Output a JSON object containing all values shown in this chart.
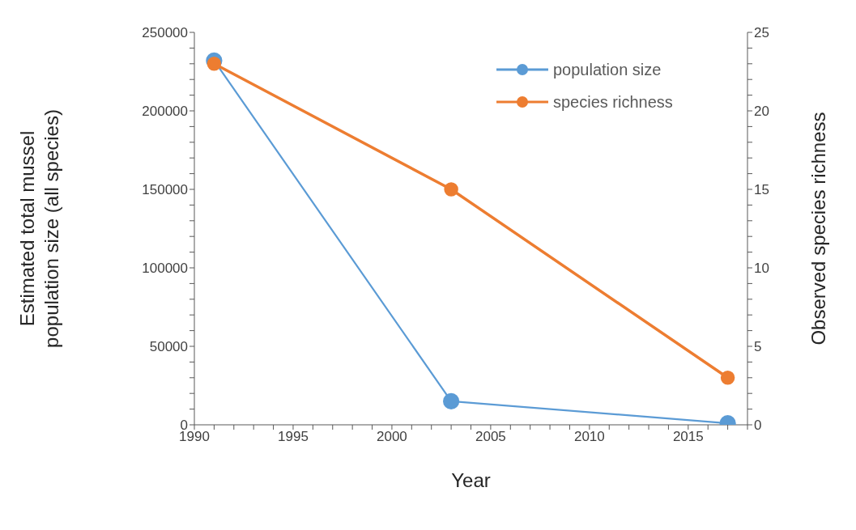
{
  "chart_data": {
    "type": "line",
    "xlabel": "Year",
    "ylabel": "Estimated total mussel population size (all species)",
    "y2label": "Observed species richness",
    "x": [
      1991,
      2003,
      2017
    ],
    "series": [
      {
        "name": "population size",
        "color": "#5b9bd5",
        "values": [
          232000,
          15000,
          1000
        ]
      },
      {
        "name": "species richness",
        "color": "#ed7d31",
        "values": [
          23,
          15,
          3
        ],
        "axis": "y2"
      }
    ],
    "xlim": [
      1990,
      2018
    ],
    "xticks": [
      1990,
      {
        "value": 1991,
        "label": null
      },
      {
        "value": 1992,
        "label": null
      },
      {
        "value": 1993,
        "label": null
      },
      {
        "value": 1994,
        "label": null
      },
      1995,
      {
        "value": 1996,
        "label": null
      },
      {
        "value": 1997,
        "label": null
      },
      {
        "value": 1998,
        "label": null
      },
      {
        "value": 1999,
        "label": null
      },
      2000,
      {
        "value": 2001,
        "label": null
      },
      {
        "value": 2002,
        "label": null
      },
      {
        "value": 2003,
        "label": null
      },
      {
        "value": 2004,
        "label": null
      },
      2005,
      {
        "value": 2006,
        "label": null
      },
      {
        "value": 2007,
        "label": null
      },
      {
        "value": 2008,
        "label": null
      },
      {
        "value": 2009,
        "label": null
      },
      2010,
      {
        "value": 2011,
        "label": null
      },
      {
        "value": 2012,
        "label": null
      },
      {
        "value": 2013,
        "label": null
      },
      {
        "value": 2014,
        "label": null
      },
      2015,
      {
        "value": 2016,
        "label": null
      },
      {
        "value": 2017,
        "label": null
      },
      {
        "value": 2018,
        "label": null
      }
    ],
    "ylim": [
      0,
      250000
    ],
    "yticks": [
      0,
      {
        "value": 10000,
        "label": null
      },
      {
        "value": 20000,
        "label": null
      },
      {
        "value": 30000,
        "label": null
      },
      {
        "value": 40000,
        "label": null
      },
      50000,
      {
        "value": 60000,
        "label": null
      },
      {
        "value": 70000,
        "label": null
      },
      {
        "value": 80000,
        "label": null
      },
      {
        "value": 90000,
        "label": null
      },
      100000,
      {
        "value": 110000,
        "label": null
      },
      {
        "value": 120000,
        "label": null
      },
      {
        "value": 130000,
        "label": null
      },
      {
        "value": 140000,
        "label": null
      },
      150000,
      {
        "value": 160000,
        "label": null
      },
      {
        "value": 170000,
        "label": null
      },
      {
        "value": 180000,
        "label": null
      },
      {
        "value": 190000,
        "label": null
      },
      200000,
      {
        "value": 210000,
        "label": null
      },
      {
        "value": 220000,
        "label": null
      },
      {
        "value": 230000,
        "label": null
      },
      {
        "value": 240000,
        "label": null
      },
      250000
    ],
    "y2lim": [
      0,
      25
    ],
    "y2ticks": [
      0,
      {
        "value": 1,
        "label": null
      },
      {
        "value": 2,
        "label": null
      },
      {
        "value": 3,
        "label": null
      },
      {
        "value": 4,
        "label": null
      },
      5,
      {
        "value": 6,
        "label": null
      },
      {
        "value": 7,
        "label": null
      },
      {
        "value": 8,
        "label": null
      },
      {
        "value": 9,
        "label": null
      },
      10,
      {
        "value": 11,
        "label": null
      },
      {
        "value": 12,
        "label": null
      },
      {
        "value": 13,
        "label": null
      },
      {
        "value": 14,
        "label": null
      },
      15,
      {
        "value": 16,
        "label": null
      },
      {
        "value": 17,
        "label": null
      },
      {
        "value": 18,
        "label": null
      },
      {
        "value": 19,
        "label": null
      },
      20,
      {
        "value": 21,
        "label": null
      },
      {
        "value": 22,
        "label": null
      },
      {
        "value": 23,
        "label": null
      },
      {
        "value": 24,
        "label": null
      },
      25
    ],
    "marker": "circle",
    "grid": false,
    "legend": "top right"
  }
}
